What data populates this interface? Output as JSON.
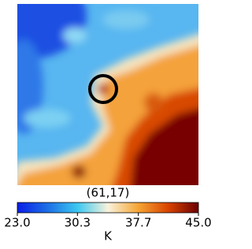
{
  "chart_data": {
    "type": "heatmap",
    "title": "(61,17)",
    "colorbar": {
      "label": "K",
      "lim": [
        23,
        45
      ],
      "ticks": [
        {
          "value": 23,
          "label": "23.0"
        },
        30.3,
        37.7,
        {
          "value": 45,
          "label": "45.0"
        }
      ],
      "colors": [
        "#0a1ee6",
        "#1c6fe6",
        "#3cc8f0",
        "#f8f2dc",
        "#f6a535",
        "#d84300",
        "#6a0000"
      ]
    }
  }
}
